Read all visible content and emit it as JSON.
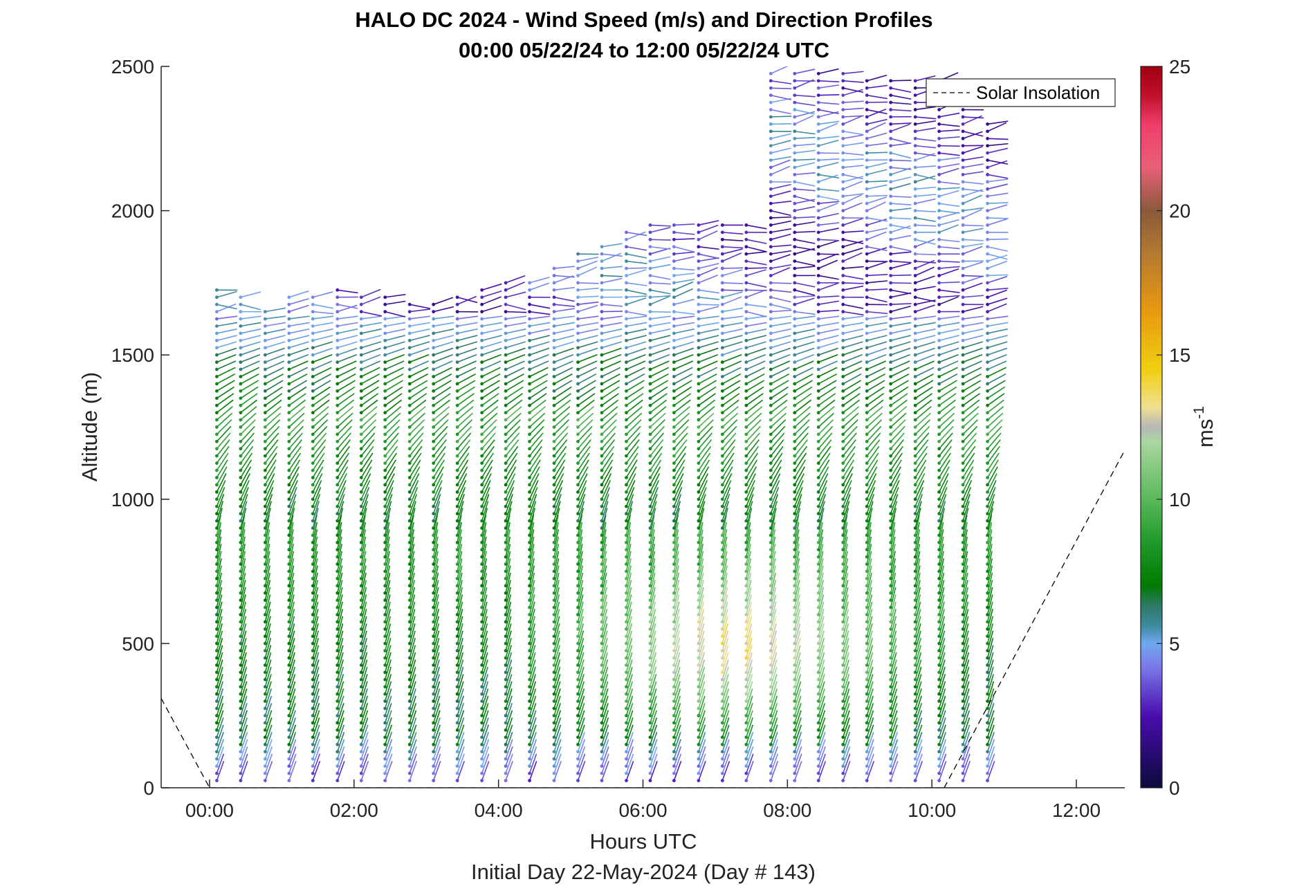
{
  "chart_data": {
    "type": "wind-barb-profile",
    "title_line1": "HALO DC 2024 - Wind Speed (m/s) and Direction Profiles",
    "title_line2": "00:00 05/22/24 to 12:00 05/22/24  UTC",
    "xlabel": "Hours UTC",
    "subtitle": "Initial Day 22-May-2024 (Day # 143)",
    "ylabel": "Altitude (m)",
    "xlim": [
      -0.67,
      12.67
    ],
    "ylim": [
      0,
      2500
    ],
    "x_ticks": [
      0,
      2,
      4,
      6,
      8,
      10,
      12
    ],
    "x_tick_labels": [
      "00:00",
      "02:00",
      "04:00",
      "06:00",
      "08:00",
      "10:00",
      "12:00"
    ],
    "y_ticks": [
      0,
      500,
      1000,
      1500,
      2000,
      2500
    ],
    "y_tick_labels": [
      "0",
      "500",
      "1000",
      "1500",
      "2000",
      "2500"
    ],
    "colorbar": {
      "label": "ms-1",
      "label_base": "ms",
      "label_exp": "-1",
      "range": [
        0,
        25
      ],
      "ticks": [
        0,
        5,
        10,
        15,
        20,
        25
      ],
      "tick_labels": [
        "0",
        "5",
        "10",
        "15",
        "20",
        "25"
      ],
      "stops": [
        {
          "v": 0,
          "c": "#0b0b3b"
        },
        {
          "v": 2.5,
          "c": "#4a0db0"
        },
        {
          "v": 4.2,
          "c": "#7a7ae8"
        },
        {
          "v": 5.0,
          "c": "#6fa8f0"
        },
        {
          "v": 5.6,
          "c": "#3f8aa0"
        },
        {
          "v": 6.3,
          "c": "#2e7a6a"
        },
        {
          "v": 7.0,
          "c": "#007a00"
        },
        {
          "v": 8.5,
          "c": "#1f9a2a"
        },
        {
          "v": 10.0,
          "c": "#5ab85a"
        },
        {
          "v": 12.0,
          "c": "#aad6a0"
        },
        {
          "v": 12.5,
          "c": "#b8b8b8"
        },
        {
          "v": 13.2,
          "c": "#f0e090"
        },
        {
          "v": 14.5,
          "c": "#f0cf10"
        },
        {
          "v": 16.5,
          "c": "#e89a10"
        },
        {
          "v": 18.5,
          "c": "#b47a30"
        },
        {
          "v": 20.0,
          "c": "#8a5a3a"
        },
        {
          "v": 21.5,
          "c": "#e86078"
        },
        {
          "v": 23.0,
          "c": "#f03c6a"
        },
        {
          "v": 24.0,
          "c": "#c0102a"
        },
        {
          "v": 25.0,
          "c": "#a00010"
        }
      ]
    },
    "legend": {
      "label": "Solar Insolation",
      "position": "top-right",
      "style": "dashed",
      "color": "#000000"
    },
    "solar_insolation": {
      "morning_segment": [
        [
          -0.67,
          310
        ],
        [
          0.0,
          0
        ]
      ],
      "night": [
        [
          0.0,
          0
        ],
        [
          10.17,
          0
        ]
      ],
      "evening_segment": [
        [
          10.17,
          0
        ],
        [
          12.67,
          1170
        ]
      ]
    },
    "profile_times_hours_utc": [
      0.1,
      0.43,
      0.77,
      1.1,
      1.43,
      1.77,
      2.1,
      2.43,
      2.77,
      3.1,
      3.43,
      3.77,
      4.1,
      4.43,
      4.77,
      5.1,
      5.43,
      5.77,
      6.1,
      6.43,
      6.77,
      7.1,
      7.43,
      7.77,
      8.1,
      8.43,
      8.77,
      9.1,
      9.43,
      9.77,
      10.1,
      10.43,
      10.77
    ],
    "altitude_sample_spacing_m": 25,
    "profile_top_altitude_m": [
      1730,
      1700,
      1670,
      1700,
      1720,
      1730,
      1720,
      1700,
      1690,
      1680,
      1700,
      1740,
      1760,
      1760,
      1800,
      1860,
      1880,
      1930,
      1960,
      1960,
      1970,
      1970,
      1970,
      2480,
      2480,
      2480,
      2480,
      2470,
      2470,
      2470,
      2470,
      2400,
      2320
    ],
    "dominant_flow": {
      "below_900m": "near-southerly, strongest 13-15 m/s around 400-500 m between 05:00 and 10:00",
      "900_to_1600m": "south-westerly, about 7-11 m/s",
      "above_1600m": "westerly to north-westerly, about 3-5 m/s"
    }
  }
}
